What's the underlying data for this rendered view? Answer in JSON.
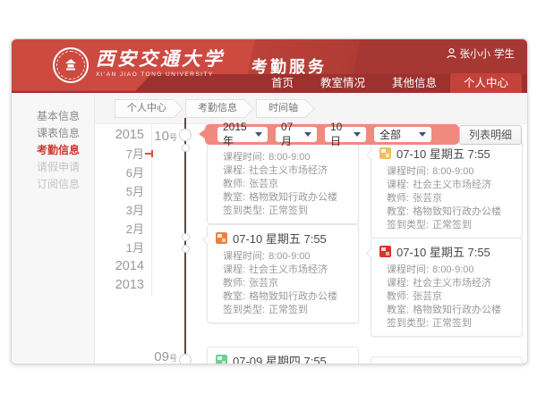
{
  "colors": {
    "header_red": "#cd4a41",
    "nav_red": "#9c312e",
    "active_tab_red": "#c5423b",
    "filter_pink": "#f08a7e",
    "timeline_line": "#5c4a43",
    "sidebar_active_red": "#cc372f",
    "status_yellow": "#efc05f",
    "status_orange": "#e9823d",
    "status_red": "#d6342c",
    "status_green": "#6fce93"
  },
  "header": {
    "university_zh": "西安交通大学",
    "university_en": "XI'AN JIAO TONG UNIVERSITY",
    "service_title": "考勤服务",
    "user": {
      "name": "张小小",
      "role": "学生"
    },
    "nav": [
      {
        "label": "首页",
        "active": false
      },
      {
        "label": "教室情况",
        "active": false
      },
      {
        "label": "其他信息",
        "active": false
      },
      {
        "label": "个人中心",
        "active": true
      }
    ]
  },
  "sidebar": {
    "items": [
      {
        "label": "基本信息",
        "state": "normal"
      },
      {
        "label": "课表信息",
        "state": "normal"
      },
      {
        "label": "考勤信息",
        "state": "active"
      },
      {
        "label": "请假申请",
        "state": "dim"
      },
      {
        "label": "订阅信息",
        "state": "dim"
      }
    ]
  },
  "breadcrumb": [
    "个人中心",
    "考勤信息",
    "时间轴"
  ],
  "filters": {
    "year": "2015年",
    "month": "07月",
    "day": "10日",
    "type": "全部"
  },
  "list_detail_button": "列表明细",
  "timeline": {
    "years_nav": [
      "2015",
      "7月",
      "6月",
      "5月",
      "3月",
      "2月",
      "1月",
      "2014",
      "2013"
    ],
    "current_nav_item": "7月",
    "day_markers": [
      {
        "label": "10",
        "suffix": "号"
      },
      {
        "label": "09",
        "suffix": "号"
      }
    ],
    "cards": [
      {
        "id": "card-1-left",
        "header": null,
        "icon_color": null,
        "fields": [
          {
            "label": "课程时间:",
            "value": "8:00-9:00"
          },
          {
            "label": "课程:",
            "value": "社会主义市场经济"
          },
          {
            "label": "教师:",
            "value": "张芸京"
          },
          {
            "label": "教室:",
            "value": "格物致知行政办公楼"
          },
          {
            "label": "签到类型:",
            "value": "正常签到"
          }
        ]
      },
      {
        "id": "card-1-right",
        "header": "07-10 星期五 7:55",
        "icon_color": "#efc05f",
        "fields": [
          {
            "label": "课程时间:",
            "value": "8:00-9:00"
          },
          {
            "label": "课程:",
            "value": "社会主义市场经济"
          },
          {
            "label": "教师:",
            "value": "张芸京"
          },
          {
            "label": "教室:",
            "value": "格物致知行政办公楼"
          },
          {
            "label": "签到类型:",
            "value": "正常签到"
          }
        ]
      },
      {
        "id": "card-2-left",
        "header": "07-10 星期五 7:55",
        "icon_color": "#e9823d",
        "fields": [
          {
            "label": "课程时间:",
            "value": "8:00-9:00"
          },
          {
            "label": "课程:",
            "value": "社会主义市场经济"
          },
          {
            "label": "教师:",
            "value": "张芸京"
          },
          {
            "label": "教室:",
            "value": "格物致知行政办公楼"
          },
          {
            "label": "签到类型:",
            "value": "正常签到"
          }
        ]
      },
      {
        "id": "card-2-right",
        "header": "07-10 星期五 7:55",
        "icon_color": "#d6342c",
        "fields": [
          {
            "label": "课程时间:",
            "value": "8:00-9:00"
          },
          {
            "label": "课程:",
            "value": "社会主义市场经济"
          },
          {
            "label": "教师:",
            "value": "张芸京"
          },
          {
            "label": "教室:",
            "value": "格物致知行政办公楼"
          },
          {
            "label": "签到类型:",
            "value": "正常签到"
          }
        ]
      },
      {
        "id": "card-3-left",
        "header": "07-09 星期四 7:55",
        "icon_color": "#6fce93",
        "fields": []
      },
      {
        "id": "card-3-right",
        "header": null,
        "icon_color": null,
        "fields": []
      }
    ]
  }
}
